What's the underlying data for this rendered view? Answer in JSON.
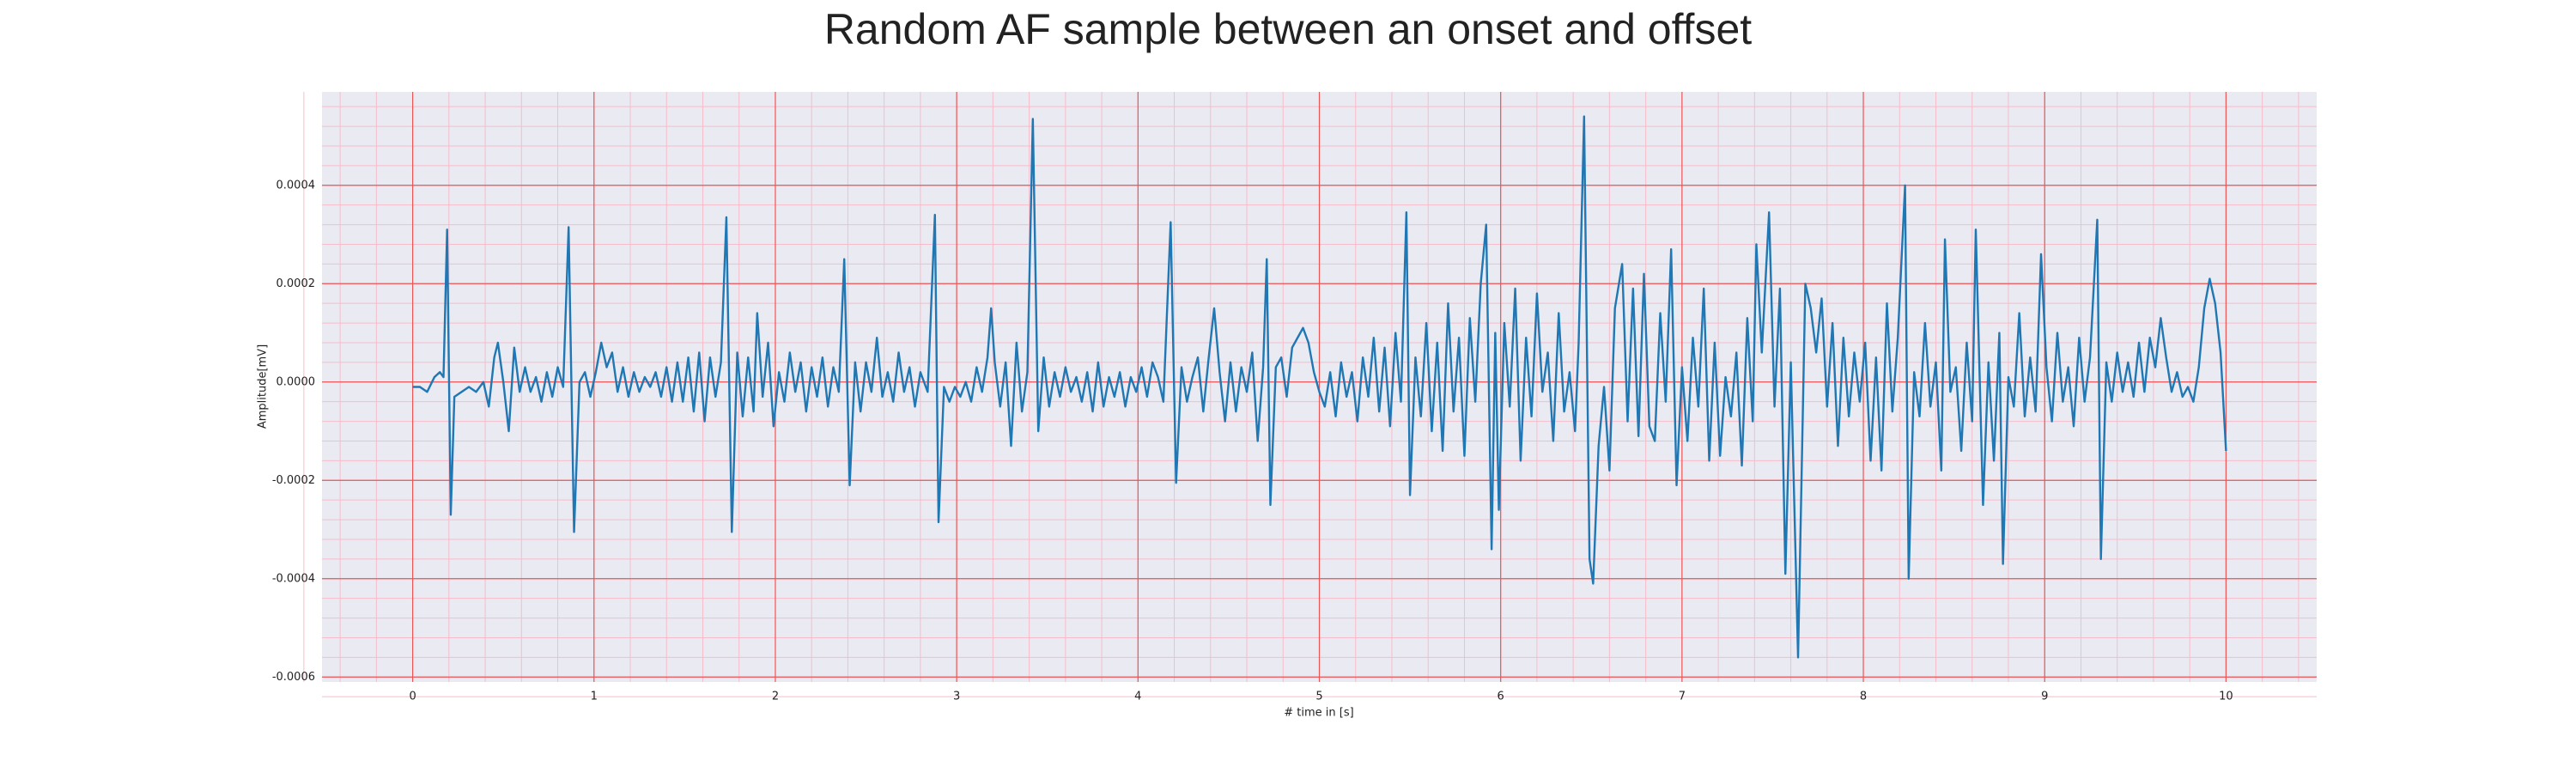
{
  "chart_data": {
    "type": "line",
    "title": "Random AF sample between an onset and offset",
    "xlabel": "# time in [s]",
    "ylabel": "Amplitude[mV]",
    "color": "#1f77b4",
    "grid": true,
    "minor_grid": true,
    "minor_per_major": 5,
    "xlim": [
      -0.5,
      10.5
    ],
    "xticks": [
      0,
      1,
      2,
      3,
      4,
      5,
      6,
      7,
      8,
      9,
      10
    ],
    "ylim": [
      -0.00061,
      0.00059
    ],
    "yticks": [
      -0.0006,
      -0.0004,
      -0.0002,
      {
        "value": 0,
        "label": "0.0000"
      },
      0.0002,
      0.0004
    ],
    "x": [
      0.0,
      0.04,
      0.08,
      0.12,
      0.15,
      0.17,
      0.19,
      0.21,
      0.23,
      0.27,
      0.31,
      0.35,
      0.39,
      0.42,
      0.45,
      0.47,
      0.5,
      0.53,
      0.56,
      0.59,
      0.62,
      0.65,
      0.68,
      0.71,
      0.74,
      0.77,
      0.8,
      0.83,
      0.86,
      0.89,
      0.92,
      0.95,
      0.98,
      1.01,
      1.04,
      1.07,
      1.1,
      1.13,
      1.16,
      1.19,
      1.22,
      1.25,
      1.28,
      1.31,
      1.34,
      1.37,
      1.4,
      1.43,
      1.46,
      1.49,
      1.52,
      1.55,
      1.58,
      1.61,
      1.64,
      1.67,
      1.7,
      1.73,
      1.76,
      1.79,
      1.82,
      1.85,
      1.88,
      1.9,
      1.93,
      1.96,
      1.99,
      2.02,
      2.05,
      2.08,
      2.11,
      2.14,
      2.17,
      2.2,
      2.23,
      2.26,
      2.29,
      2.32,
      2.35,
      2.38,
      2.41,
      2.44,
      2.47,
      2.5,
      2.53,
      2.56,
      2.59,
      2.62,
      2.65,
      2.68,
      2.71,
      2.74,
      2.77,
      2.8,
      2.84,
      2.88,
      2.9,
      2.93,
      2.96,
      2.99,
      3.02,
      3.05,
      3.08,
      3.11,
      3.14,
      3.17,
      3.19,
      3.21,
      3.24,
      3.27,
      3.3,
      3.33,
      3.36,
      3.39,
      3.42,
      3.45,
      3.48,
      3.51,
      3.54,
      3.57,
      3.6,
      3.63,
      3.66,
      3.69,
      3.72,
      3.75,
      3.78,
      3.81,
      3.84,
      3.87,
      3.9,
      3.93,
      3.96,
      3.99,
      4.02,
      4.05,
      4.08,
      4.11,
      4.14,
      4.18,
      4.21,
      4.24,
      4.27,
      4.3,
      4.33,
      4.36,
      4.39,
      4.42,
      4.45,
      4.48,
      4.51,
      4.54,
      4.57,
      4.6,
      4.63,
      4.66,
      4.69,
      4.71,
      4.73,
      4.76,
      4.79,
      4.82,
      4.85,
      4.88,
      4.91,
      4.94,
      4.97,
      5.0,
      5.03,
      5.06,
      5.09,
      5.12,
      5.15,
      5.18,
      5.21,
      5.24,
      5.27,
      5.3,
      5.33,
      5.36,
      5.39,
      5.42,
      5.45,
      5.48,
      5.5,
      5.53,
      5.56,
      5.59,
      5.62,
      5.65,
      5.68,
      5.71,
      5.74,
      5.77,
      5.8,
      5.83,
      5.86,
      5.89,
      5.92,
      5.95,
      5.97,
      5.99,
      6.02,
      6.05,
      6.08,
      6.11,
      6.14,
      6.17,
      6.2,
      6.23,
      6.26,
      6.29,
      6.32,
      6.35,
      6.38,
      6.41,
      6.43,
      6.46,
      6.49,
      6.51,
      6.54,
      6.57,
      6.6,
      6.63,
      6.67,
      6.7,
      6.73,
      6.76,
      6.79,
      6.82,
      6.85,
      6.88,
      6.91,
      6.94,
      6.97,
      7.0,
      7.03,
      7.06,
      7.09,
      7.12,
      7.15,
      7.18,
      7.21,
      7.24,
      7.27,
      7.3,
      7.33,
      7.36,
      7.39,
      7.41,
      7.44,
      7.48,
      7.51,
      7.54,
      7.57,
      7.6,
      7.64,
      7.68,
      7.71,
      7.74,
      7.77,
      7.8,
      7.83,
      7.86,
      7.89,
      7.92,
      7.95,
      7.98,
      8.01,
      8.04,
      8.07,
      8.1,
      8.13,
      8.16,
      8.19,
      8.23,
      8.25,
      8.28,
      8.31,
      8.34,
      8.37,
      8.4,
      8.43,
      8.45,
      8.48,
      8.51,
      8.54,
      8.57,
      8.6,
      8.62,
      8.66,
      8.69,
      8.72,
      8.75,
      8.77,
      8.8,
      8.83,
      8.86,
      8.89,
      8.92,
      8.95,
      8.98,
      9.01,
      9.04,
      9.07,
      9.1,
      9.13,
      9.16,
      9.19,
      9.22,
      9.25,
      9.29,
      9.31,
      9.34,
      9.37,
      9.4,
      9.43,
      9.46,
      9.49,
      9.52,
      9.55,
      9.58,
      9.61,
      9.64,
      9.67,
      9.7,
      9.73,
      9.76,
      9.79,
      9.82,
      9.85,
      9.88,
      9.91,
      9.94,
      9.97,
      10.0
    ],
    "values": [
      -1e-05,
      -1e-05,
      -2e-05,
      1e-05,
      2e-05,
      1e-05,
      0.00031,
      -0.00027,
      -3e-05,
      -2e-05,
      -1e-05,
      -2e-05,
      0.0,
      -5e-05,
      5e-05,
      8e-05,
      0.0,
      -0.0001,
      7e-05,
      -2e-05,
      3e-05,
      -2e-05,
      1e-05,
      -4e-05,
      2e-05,
      -3e-05,
      3e-05,
      -1e-05,
      0.000315,
      -0.000305,
      0.0,
      2e-05,
      -3e-05,
      2e-05,
      8e-05,
      3e-05,
      6e-05,
      -2e-05,
      3e-05,
      -3e-05,
      2e-05,
      -2e-05,
      1e-05,
      -1e-05,
      2e-05,
      -3e-05,
      3e-05,
      -4e-05,
      4e-05,
      -4e-05,
      5e-05,
      -6e-05,
      6e-05,
      -8e-05,
      5e-05,
      -3e-05,
      4e-05,
      0.000335,
      -0.000305,
      6e-05,
      -7e-05,
      5e-05,
      -6e-05,
      0.00014,
      -3e-05,
      8e-05,
      -9e-05,
      2e-05,
      -4e-05,
      6e-05,
      -2e-05,
      4e-05,
      -6e-05,
      3e-05,
      -3e-05,
      5e-05,
      -5e-05,
      3e-05,
      -2e-05,
      0.00025,
      -0.00021,
      4e-05,
      -6e-05,
      4e-05,
      -2e-05,
      9e-05,
      -3e-05,
      2e-05,
      -4e-05,
      6e-05,
      -2e-05,
      3e-05,
      -5e-05,
      2e-05,
      -2e-05,
      0.00034,
      -0.000285,
      -1e-05,
      -4e-05,
      -1e-05,
      -3e-05,
      0.0,
      -4e-05,
      3e-05,
      -2e-05,
      5e-05,
      0.00015,
      4e-05,
      -5e-05,
      4e-05,
      -0.00013,
      8e-05,
      -6e-05,
      2e-05,
      0.000535,
      -0.0001,
      5e-05,
      -5e-05,
      2e-05,
      -3e-05,
      3e-05,
      -2e-05,
      1e-05,
      -4e-05,
      2e-05,
      -6e-05,
      4e-05,
      -5e-05,
      1e-05,
      -3e-05,
      2e-05,
      -5e-05,
      1e-05,
      -2e-05,
      3e-05,
      -3e-05,
      4e-05,
      1e-05,
      -4e-05,
      0.000325,
      -0.000205,
      3e-05,
      -4e-05,
      1e-05,
      5e-05,
      -6e-05,
      5e-05,
      0.00015,
      2e-05,
      -8e-05,
      4e-05,
      -6e-05,
      3e-05,
      -2e-05,
      6e-05,
      -0.00012,
      3e-05,
      0.00025,
      -0.00025,
      3e-05,
      5e-05,
      -3e-05,
      7e-05,
      9e-05,
      0.00011,
      8e-05,
      2e-05,
      -2e-05,
      -5e-05,
      2e-05,
      -7e-05,
      4e-05,
      -3e-05,
      2e-05,
      -8e-05,
      5e-05,
      -3e-05,
      9e-05,
      -6e-05,
      7e-05,
      -9e-05,
      0.0001,
      -4e-05,
      0.000345,
      -0.00023,
      5e-05,
      -7e-05,
      0.00012,
      -0.0001,
      8e-05,
      -0.00014,
      0.00016,
      -6e-05,
      9e-05,
      -0.00015,
      0.00013,
      -4e-05,
      0.0002,
      0.00032,
      -0.00034,
      0.0001,
      -0.00026,
      0.00012,
      -5e-05,
      0.00019,
      -0.00016,
      9e-05,
      -7e-05,
      0.00018,
      -2e-05,
      6e-05,
      -0.00012,
      0.00014,
      -6e-05,
      2e-05,
      -0.0001,
      8e-05,
      0.00054,
      -0.00036,
      -0.00041,
      -0.00013,
      -1e-05,
      -0.00018,
      0.00015,
      0.00024,
      -8e-05,
      0.00019,
      -0.00011,
      0.00022,
      -9e-05,
      -0.00012,
      0.00014,
      -4e-05,
      0.00027,
      -0.00021,
      3e-05,
      -0.00012,
      9e-05,
      -5e-05,
      0.00019,
      -0.00016,
      8e-05,
      -0.00015,
      1e-05,
      -7e-05,
      6e-05,
      -0.00017,
      0.00013,
      -8e-05,
      0.00028,
      6e-05,
      0.000345,
      -5e-05,
      0.00019,
      -0.00039,
      4e-05,
      -0.00056,
      0.0002,
      0.00015,
      6e-05,
      0.00017,
      -5e-05,
      0.00012,
      -0.00013,
      9e-05,
      -7e-05,
      6e-05,
      -4e-05,
      8e-05,
      -0.00016,
      5e-05,
      -0.00018,
      0.00016,
      -6e-05,
      9e-05,
      0.0004,
      -0.0004,
      2e-05,
      -7e-05,
      0.00012,
      -5e-05,
      4e-05,
      -0.00018,
      0.00029,
      -2e-05,
      3e-05,
      -0.00014,
      8e-05,
      -8e-05,
      0.00031,
      -0.00025,
      4e-05,
      -0.00016,
      0.0001,
      -0.00037,
      1e-05,
      -5e-05,
      0.00014,
      -7e-05,
      5e-05,
      -6e-05,
      0.00026,
      3e-05,
      -8e-05,
      0.0001,
      -4e-05,
      3e-05,
      -9e-05,
      9e-05,
      -4e-05,
      5e-05,
      0.00033,
      -0.00036,
      4e-05,
      -4e-05,
      6e-05,
      -2e-05,
      4e-05,
      -3e-05,
      8e-05,
      -2e-05,
      9e-05,
      3e-05,
      0.00013,
      5e-05,
      -2e-05,
      2e-05,
      -3e-05,
      -1e-05,
      -4e-05,
      3e-05,
      0.00015,
      0.00021,
      0.00016,
      6e-05,
      -0.00014
    ]
  }
}
